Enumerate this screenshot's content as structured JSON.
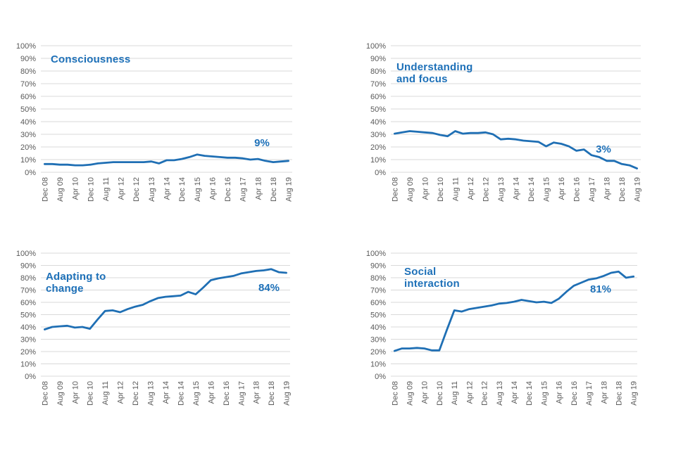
{
  "colors": {
    "background": "#ffffff",
    "line": "#1f6fb4",
    "title_text": "#1d70b8",
    "data_label_text": "#1d70b8",
    "axis_text": "#595959",
    "gridline": "#d9d9d9"
  },
  "chart_data": [
    {
      "id": "consciousness",
      "type": "line",
      "title": "Consciousness",
      "end_label": "9%",
      "ylim": [
        0,
        100
      ],
      "grid": "horizontal",
      "legend": "none",
      "y_tick_labels": [
        "0%",
        "10%",
        "20%",
        "30%",
        "40%",
        "50%",
        "60%",
        "70%",
        "80%",
        "90%",
        "100%"
      ],
      "x_tick_labels": [
        "Dec 08",
        "Aug 09",
        "Apr 10",
        "Dec 10",
        "Aug 11",
        "Apr 12",
        "Dec 12",
        "Aug 13",
        "Apr 14",
        "Dec 14",
        "Aug 15",
        "Apr 16",
        "Dec 16",
        "Aug 17",
        "Apr 18",
        "Dec 18",
        "Aug 19"
      ],
      "points_per_tick": 2,
      "values": [
        6.5,
        6.5,
        6,
        6,
        5.5,
        5.5,
        6,
        7,
        7.5,
        8,
        8,
        8,
        8,
        8,
        8.5,
        7,
        9.5,
        9.5,
        10.5,
        12,
        14,
        13,
        12.5,
        12,
        11.5,
        11.5,
        11,
        10,
        10.5,
        9,
        8,
        8.5,
        9
      ]
    },
    {
      "id": "understanding-and-focus",
      "type": "line",
      "title": "Understanding\nand focus",
      "end_label": "3%",
      "ylim": [
        0,
        100
      ],
      "grid": "horizontal",
      "legend": "none",
      "y_tick_labels": [
        "0%",
        "10%",
        "20%",
        "30%",
        "40%",
        "50%",
        "60%",
        "70%",
        "80%",
        "90%",
        "100%"
      ],
      "x_tick_labels": [
        "Dec 08",
        "Aug 09",
        "Apr 10",
        "Dec 10",
        "Aug 11",
        "Apr 12",
        "Dec 12",
        "Aug 13",
        "Apr 14",
        "Dec 14",
        "Aug 15",
        "Apr 16",
        "Dec 16",
        "Aug 17",
        "Apr 18",
        "Dec 18",
        "Aug 19"
      ],
      "points_per_tick": 2,
      "values": [
        30.5,
        31.5,
        32.5,
        32,
        31.5,
        31,
        29.5,
        28.5,
        32.5,
        30.5,
        31,
        31,
        31.5,
        30,
        26,
        26.5,
        26,
        25,
        24.5,
        24,
        20.5,
        23.5,
        22.5,
        20.5,
        17,
        18,
        13.5,
        12,
        9,
        9,
        6.5,
        5.5,
        3
      ]
    },
    {
      "id": "adapting-to-change",
      "type": "line",
      "title": "Adapting to\nchange",
      "end_label": "84%",
      "ylim": [
        0,
        100
      ],
      "grid": "horizontal",
      "legend": "none",
      "y_tick_labels": [
        "0%",
        "10%",
        "20%",
        "30%",
        "40%",
        "50%",
        "60%",
        "70%",
        "80%",
        "90%",
        "100%"
      ],
      "x_tick_labels": [
        "Dec 08",
        "Aug 09",
        "Apr 10",
        "Dec 10",
        "Aug 11",
        "Apr 12",
        "Dec 12",
        "Aug 13",
        "Apr 14",
        "Dec 14",
        "Aug 15",
        "Apr 16",
        "Dec 16",
        "Aug 17",
        "Apr 18",
        "Dec 18",
        "Aug 19"
      ],
      "points_per_tick": 2,
      "values": [
        38,
        40,
        40.5,
        41,
        39.5,
        40,
        38.5,
        46,
        53,
        53.5,
        52,
        54.5,
        56.5,
        58,
        61,
        63.5,
        64.5,
        65,
        65.5,
        68.5,
        66.5,
        72,
        78,
        79.5,
        80.5,
        81.5,
        83.5,
        84.5,
        85.5,
        86,
        87,
        84.5,
        84
      ]
    },
    {
      "id": "social-interaction",
      "type": "line",
      "title": "Social\ninteraction",
      "end_label": "81%",
      "ylim": [
        0,
        100
      ],
      "grid": "horizontal",
      "legend": "none",
      "y_tick_labels": [
        "0%",
        "10%",
        "20%",
        "30%",
        "40%",
        "50%",
        "60%",
        "70%",
        "80%",
        "90%",
        "100%"
      ],
      "x_tick_labels": [
        "Dec 08",
        "Aug 09",
        "Apr 10",
        "Dec 10",
        "Aug 11",
        "Apr 12",
        "Dec 12",
        "Aug 13",
        "Apr 14",
        "Dec 14",
        "Aug 15",
        "Apr 16",
        "Dec 16",
        "Aug 17",
        "Apr 18",
        "Dec 18",
        "Aug 19"
      ],
      "points_per_tick": 2,
      "values": [
        20.5,
        22.5,
        22.5,
        23,
        22.5,
        21,
        21,
        37.5,
        53.5,
        52.5,
        54.5,
        55.5,
        56.5,
        57.5,
        59,
        59.5,
        60.5,
        62,
        61,
        60,
        60.5,
        59.5,
        63,
        68.5,
        73.5,
        76,
        78.5,
        79.5,
        81.5,
        84,
        85,
        80,
        81
      ]
    }
  ]
}
